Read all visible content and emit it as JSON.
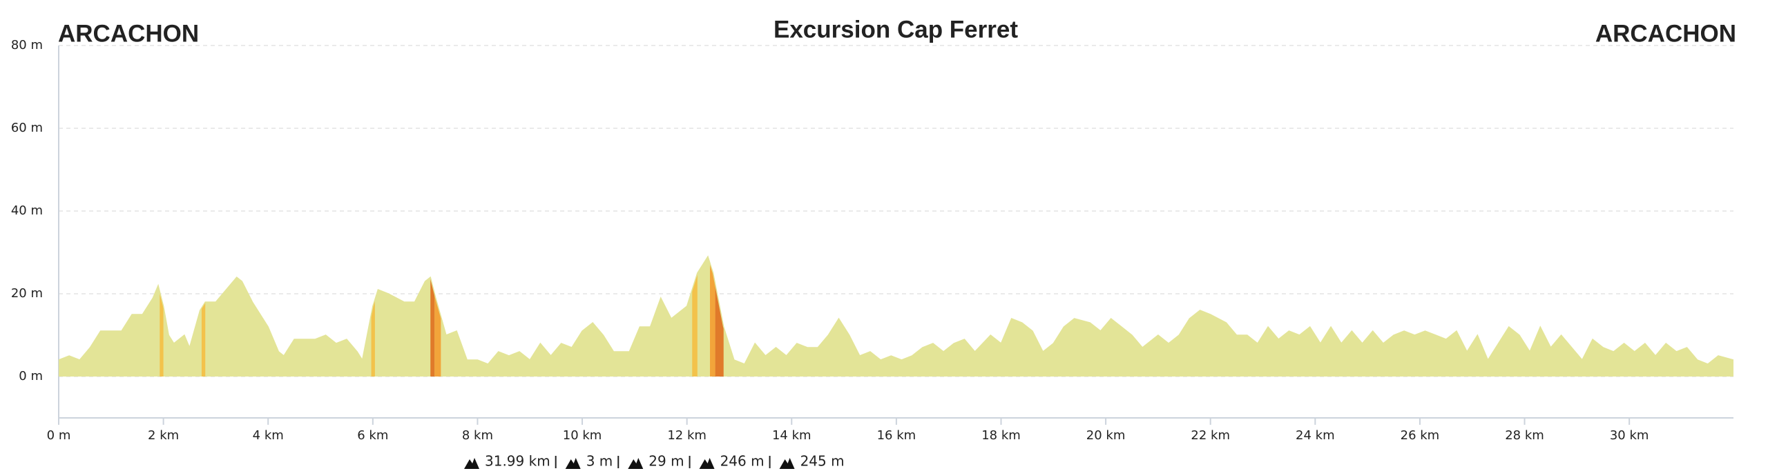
{
  "chart_data": {
    "type": "area",
    "title": "Excursion Cap Ferret",
    "start_label": "ARCACHON",
    "end_label": "ARCACHON",
    "color": "#e3e497",
    "x": [
      0,
      0.2,
      0.4,
      0.6,
      0.8,
      1.0,
      1.2,
      1.4,
      1.6,
      1.8,
      1.9,
      2.0,
      2.1,
      2.2,
      2.4,
      2.5,
      2.7,
      2.8,
      3.0,
      3.2,
      3.4,
      3.5,
      3.7,
      4.0,
      4.2,
      4.3,
      4.5,
      4.7,
      4.9,
      5.1,
      5.3,
      5.5,
      5.7,
      5.8,
      6.0,
      6.1,
      6.3,
      6.6,
      6.8,
      7.0,
      7.1,
      7.2,
      7.4,
      7.6,
      7.8,
      8.0,
      8.2,
      8.4,
      8.6,
      8.8,
      9.0,
      9.2,
      9.4,
      9.6,
      9.8,
      10.0,
      10.2,
      10.4,
      10.6,
      10.9,
      11.1,
      11.3,
      11.5,
      11.7,
      12.0,
      12.2,
      12.4,
      12.5,
      12.7,
      12.9,
      13.1,
      13.3,
      13.5,
      13.7,
      13.9,
      14.1,
      14.3,
      14.5,
      14.7,
      14.9,
      15.1,
      15.3,
      15.5,
      15.7,
      15.9,
      16.1,
      16.3,
      16.5,
      16.7,
      16.9,
      17.1,
      17.3,
      17.5,
      17.8,
      18.0,
      18.2,
      18.4,
      18.6,
      18.8,
      19.0,
      19.2,
      19.4,
      19.7,
      19.9,
      20.1,
      20.3,
      20.5,
      20.7,
      21.0,
      21.2,
      21.4,
      21.6,
      21.8,
      22.0,
      22.3,
      22.5,
      22.7,
      22.9,
      23.1,
      23.3,
      23.5,
      23.7,
      23.9,
      24.1,
      24.3,
      24.5,
      24.7,
      24.9,
      25.1,
      25.3,
      25.5,
      25.7,
      25.9,
      26.1,
      26.3,
      26.5,
      26.7,
      26.9,
      27.1,
      27.3,
      27.5,
      27.7,
      27.9,
      28.1,
      28.3,
      28.5,
      28.7,
      28.9,
      29.1,
      29.3,
      29.5,
      29.7,
      29.9,
      30.1,
      30.3,
      30.5,
      30.7,
      30.9,
      31.1,
      31.3,
      31.5,
      31.7,
      31.99
    ],
    "values": [
      4,
      5,
      4,
      7,
      11,
      11,
      11,
      15,
      15,
      19,
      22,
      17,
      10,
      8,
      10,
      7,
      16,
      18,
      18,
      21,
      24,
      23,
      18,
      12,
      6,
      5,
      9,
      9,
      9,
      10,
      8,
      9,
      6,
      4,
      17,
      21,
      20,
      18,
      18,
      23,
      24,
      19,
      10,
      11,
      4,
      4,
      3,
      6,
      5,
      6,
      4,
      8,
      5,
      8,
      7,
      11,
      13,
      10,
      6,
      6,
      12,
      12,
      19,
      14,
      17,
      25,
      29,
      25,
      12,
      4,
      3,
      8,
      5,
      7,
      5,
      8,
      7,
      7,
      10,
      14,
      10,
      5,
      6,
      4,
      5,
      4,
      5,
      7,
      8,
      6,
      8,
      9,
      6,
      10,
      8,
      14,
      13,
      11,
      6,
      8,
      12,
      14,
      13,
      11,
      14,
      12,
      10,
      7,
      10,
      8,
      10,
      14,
      16,
      15,
      13,
      10,
      10,
      8,
      12,
      9,
      11,
      10,
      12,
      8,
      12,
      8,
      11,
      8,
      11,
      8,
      10,
      11,
      10,
      11,
      10,
      9,
      11,
      6,
      10,
      4,
      8,
      12,
      10,
      6,
      12,
      7,
      10,
      7,
      4,
      9,
      7,
      6,
      8,
      6,
      8,
      5,
      8,
      6,
      7,
      4,
      3,
      5,
      4
    ],
    "highlights": [
      {
        "start": 1.93,
        "end": 2.0,
        "color": "#f3c24b"
      },
      {
        "start": 2.73,
        "end": 2.8,
        "color": "#f3c24b"
      },
      {
        "start": 5.97,
        "end": 6.04,
        "color": "#f3c24b"
      },
      {
        "start": 7.1,
        "end": 7.18,
        "color": "#e07a2a"
      },
      {
        "start": 7.18,
        "end": 7.3,
        "color": "#f2a43a"
      },
      {
        "start": 12.1,
        "end": 12.2,
        "color": "#f3c24b"
      },
      {
        "start": 12.44,
        "end": 12.54,
        "color": "#f2a43a"
      },
      {
        "start": 12.54,
        "end": 12.7,
        "color": "#e07a2a"
      }
    ],
    "xlim": [
      0,
      31.99
    ],
    "ylim": [
      -10,
      80
    ],
    "xticks": [
      {
        "value": 0,
        "label": "0 m"
      },
      {
        "value": 2,
        "label": "2 km"
      },
      {
        "value": 4,
        "label": "4 km"
      },
      {
        "value": 6,
        "label": "6 km"
      },
      {
        "value": 8,
        "label": "8 km"
      },
      {
        "value": 10,
        "label": "10 km"
      },
      {
        "value": 12,
        "label": "12 km"
      },
      {
        "value": 14,
        "label": "14 km"
      },
      {
        "value": 16,
        "label": "16 km"
      },
      {
        "value": 18,
        "label": "18 km"
      },
      {
        "value": 20,
        "label": "20 km"
      },
      {
        "value": 22,
        "label": "22 km"
      },
      {
        "value": 24,
        "label": "24 km"
      },
      {
        "value": 26,
        "label": "26 km"
      },
      {
        "value": 28,
        "label": "28 km"
      },
      {
        "value": 30,
        "label": "30 km"
      }
    ],
    "yticks": [
      {
        "value": 0,
        "label": "0 m"
      },
      {
        "value": 20,
        "label": "20 m"
      },
      {
        "value": 40,
        "label": "40 m"
      },
      {
        "value": 60,
        "label": "60 m"
      },
      {
        "value": 80,
        "label": "80 m"
      }
    ],
    "grid": true,
    "stats": [
      "31.99 km",
      "3 m",
      "29 m",
      "246 m",
      "245 m"
    ]
  }
}
